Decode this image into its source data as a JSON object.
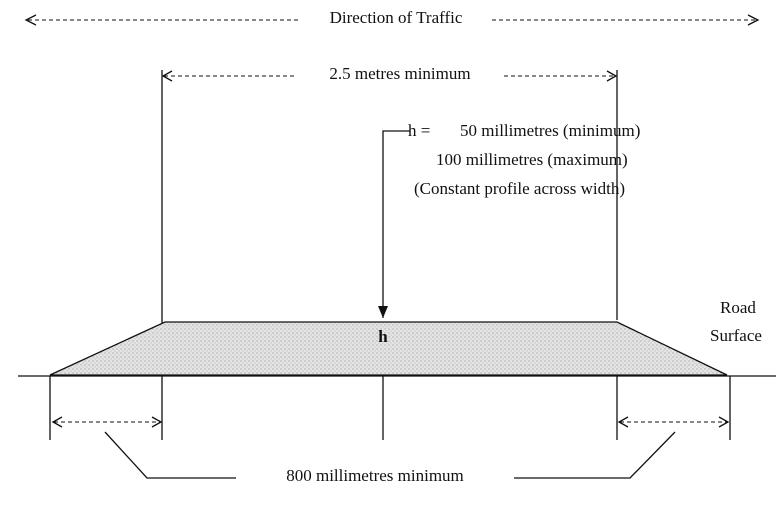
{
  "labels": {
    "direction": "Direction of Traffic",
    "width": "2.5 metres minimum",
    "h_eq": "h =",
    "h_min": "50 millimetres (minimum)",
    "h_max": "100 millimetres (maximum)",
    "profile": "(Constant profile across width)",
    "h": "h",
    "road": "Road",
    "surface": "Surface",
    "ramp": "800 millimetres minimum"
  }
}
